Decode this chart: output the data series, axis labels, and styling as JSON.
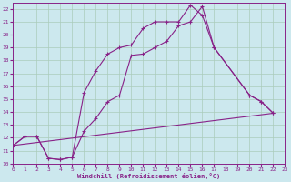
{
  "xlabel": "Windchill (Refroidissement éolien,°C)",
  "bg_color": "#cce8ee",
  "line_color": "#882288",
  "grid_color": "#aaccbb",
  "xlim": [
    0,
    23
  ],
  "ylim": [
    10,
    22.5
  ],
  "xticks": [
    0,
    1,
    2,
    3,
    4,
    5,
    6,
    7,
    8,
    9,
    10,
    11,
    12,
    13,
    14,
    15,
    16,
    17,
    18,
    19,
    20,
    21,
    22,
    23
  ],
  "yticks": [
    10,
    11,
    12,
    13,
    14,
    15,
    16,
    17,
    18,
    19,
    20,
    21,
    22
  ],
  "line1_x": [
    0,
    1,
    2,
    3,
    4,
    5,
    6,
    7,
    8,
    9,
    10,
    11,
    12,
    13,
    14,
    15,
    16,
    17,
    20,
    21,
    22
  ],
  "line1_y": [
    11.4,
    12.1,
    12.1,
    10.4,
    10.3,
    10.5,
    15.5,
    17.2,
    18.5,
    19.0,
    19.2,
    20.5,
    21.0,
    21.0,
    21.0,
    22.3,
    21.5,
    19.0,
    15.3,
    14.8,
    13.9
  ],
  "line2_x": [
    0,
    1,
    2,
    3,
    4,
    5,
    6,
    7,
    8,
    9,
    10,
    11,
    12,
    13,
    14,
    15,
    16,
    17,
    20,
    21,
    22
  ],
  "line2_y": [
    11.4,
    12.1,
    12.1,
    10.4,
    10.3,
    10.5,
    12.5,
    13.5,
    14.8,
    15.3,
    18.4,
    18.5,
    19.0,
    19.5,
    20.7,
    21.0,
    22.2,
    19.0,
    15.3,
    14.8,
    13.9
  ],
  "line3_x": [
    0,
    22
  ],
  "line3_y": [
    11.4,
    13.9
  ]
}
